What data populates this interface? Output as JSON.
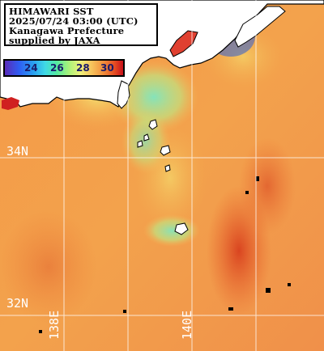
{
  "info": {
    "line1": "HIMAWARI SST",
    "line2": "2025/07/24 03:00 (UTC)",
    "line3": "Kanagawa Prefecture",
    "line4": "supplied by JAXA"
  },
  "legend": {
    "ticks": [
      "24",
      "26",
      "28",
      "30"
    ],
    "tick_colors": [
      "#1a1a6a",
      "#1a1a6a",
      "#1a1a6a",
      "#1a1a6a"
    ]
  },
  "grid": {
    "lat_labels": [
      "34N",
      "32N"
    ],
    "lon_labels": [
      "138E",
      "140E"
    ]
  },
  "colors": {
    "sea_warm": "#f4a04a",
    "sea_hot": "#e8602a",
    "sea_cool": "#8fe8a0",
    "land": "#ffffff",
    "coastline": "#000000",
    "gridline": "#ffffff"
  }
}
